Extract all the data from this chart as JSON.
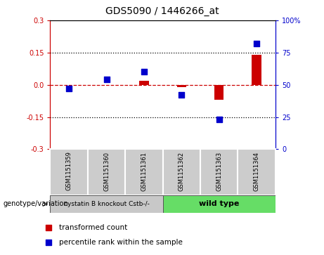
{
  "title": "GDS5090 / 1446266_at",
  "samples": [
    "GSM1151359",
    "GSM1151360",
    "GSM1151361",
    "GSM1151362",
    "GSM1151363",
    "GSM1151364"
  ],
  "transformed_count": [
    0.0,
    0.0,
    0.02,
    -0.01,
    -0.07,
    0.14
  ],
  "percentile_rank": [
    47,
    54,
    60,
    42,
    23,
    82
  ],
  "group1_indices": [
    0,
    1,
    2
  ],
  "group2_indices": [
    3,
    4,
    5
  ],
  "group1_label": "cystatin B knockout Cstb-/-",
  "group2_label": "wild type",
  "group1_color": "#c8c8c8",
  "group2_color": "#66dd66",
  "bar_color": "#cc0000",
  "dot_color": "#0000cc",
  "ylim_left": [
    -0.3,
    0.3
  ],
  "ylim_right": [
    0,
    100
  ],
  "yticks_left": [
    -0.3,
    -0.15,
    0.0,
    0.15,
    0.3
  ],
  "yticks_right": [
    0,
    25,
    50,
    75,
    100
  ],
  "hline_color": "#cc0000",
  "dotline_vals": [
    0.15,
    -0.15
  ],
  "genotype_label": "genotype/variation",
  "legend_red_label": "transformed count",
  "legend_blue_label": "percentile rank within the sample",
  "bar_width": 0.25
}
